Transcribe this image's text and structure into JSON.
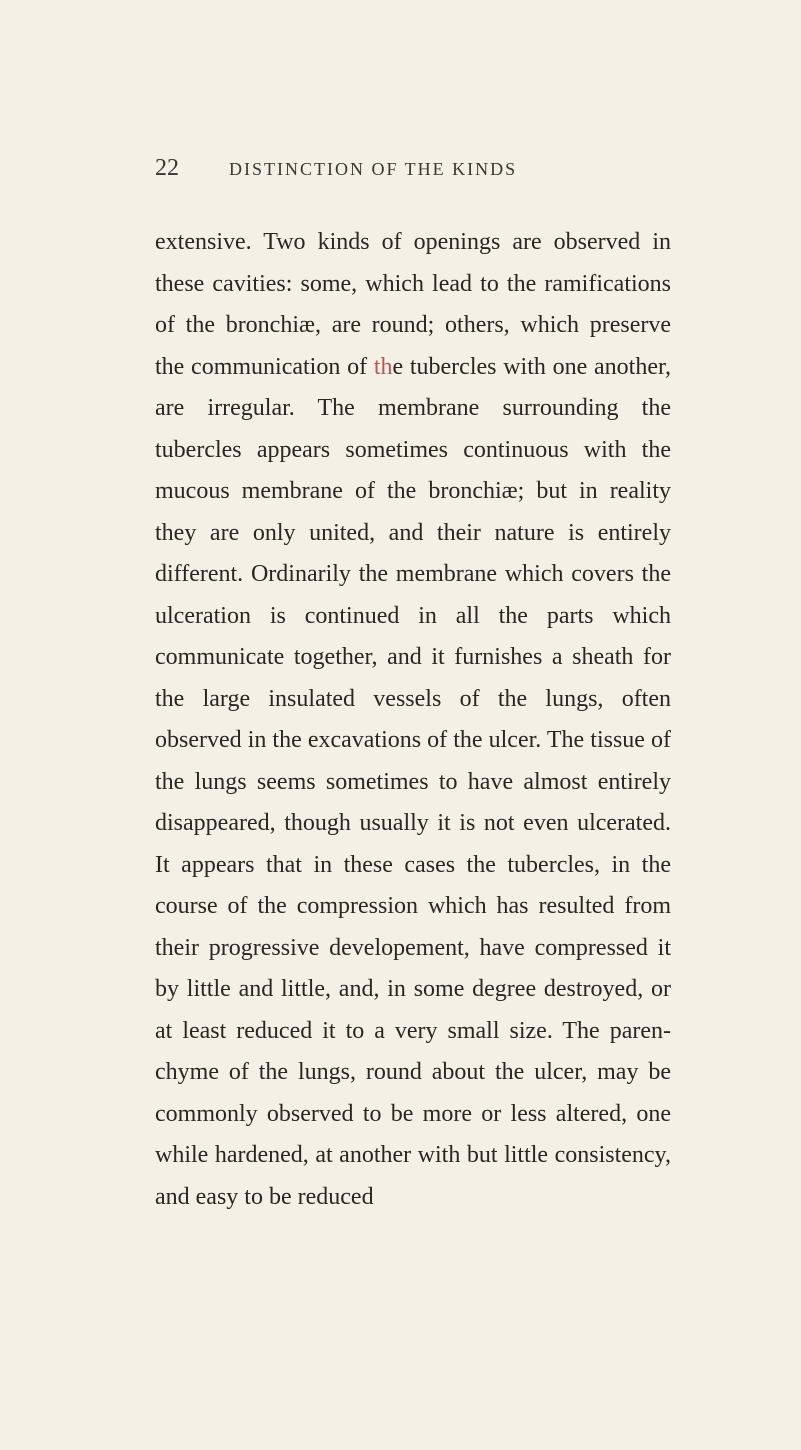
{
  "page": {
    "number": "22",
    "title": "DISTINCTION OF THE KINDS",
    "body_part1": "extensive. Two kinds of openings are observ­ed in these cavities: some, which lead to the ramifications of the bronchiæ, are round; others, which preserve the communication of ",
    "red_text": "th",
    "body_part2": "e tubercles with one another, are irregular. The membrane surrounding the tubercles ap­pears sometimes continuous with the mucous membrane of the bronchiæ; but in reality they are only united, and their nature is entirely different. Ordinarily the membrane which covers the ulceration is continued in all the parts which communicate together, and it furnishes a sheath for the large insulated vessels of the lungs, often observed in the excavations of the ulcer. The tissue of the lungs seems sometimes to have almost entirely disappeared, though usually it is not even ulcerated. It appears that in these cases the tubercles, in the course of the compression which has resulted from their progressive de­velopement, have compressed it by little and little, and, in some degree destroyed, or at least reduced it to a very small size. The paren­chyme of the lungs, round about the ulcer, may be commonly observed to be more or less altered, one while hardened, at another with but little consistency, and easy to be reduced"
  }
}
